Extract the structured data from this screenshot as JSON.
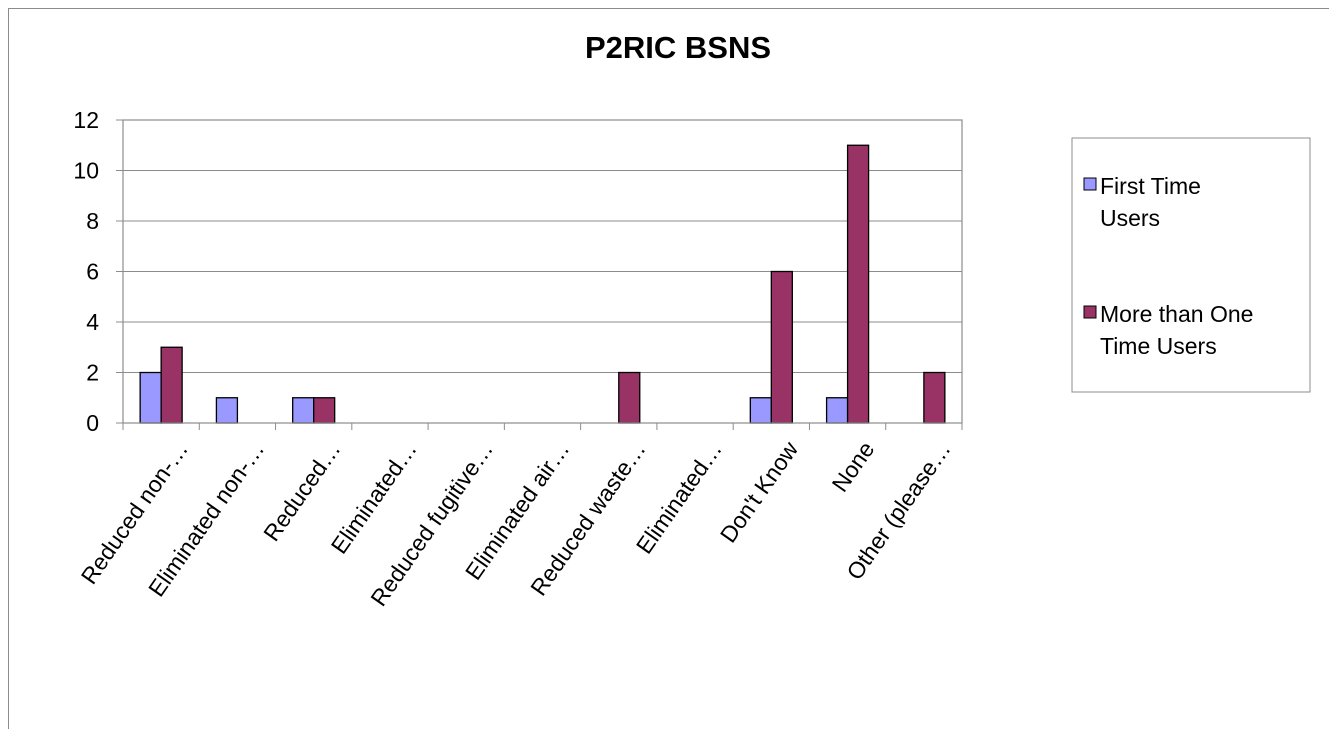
{
  "chart_data": {
    "type": "bar",
    "title": "P2RIC BSNS",
    "xlabel": "",
    "ylabel": "",
    "ylim": [
      0,
      12
    ],
    "yticks": [
      0,
      2,
      4,
      6,
      8,
      10,
      12
    ],
    "grid": true,
    "legend_position": "right",
    "categories": [
      "Reduced non-…",
      "Eliminated non-…",
      "Reduced…",
      "Eliminated…",
      "Reduced fugitive…",
      "Eliminated air…",
      "Reduced waste…",
      "Eliminated…",
      "Don't Know",
      "None",
      "Other (please…"
    ],
    "series": [
      {
        "name": "First Time Users",
        "color": "#9999ff",
        "values": [
          2,
          1,
          1,
          0,
          0,
          0,
          0,
          0,
          1,
          1,
          0
        ]
      },
      {
        "name": "More than One Time Users",
        "color": "#993366",
        "values": [
          3,
          0,
          1,
          0,
          0,
          0,
          2,
          0,
          6,
          11,
          2
        ]
      }
    ]
  },
  "legend": {
    "items": [
      {
        "line1": "First Time",
        "line2": "Users"
      },
      {
        "line1": "More than One",
        "line2": "Time Users"
      }
    ]
  }
}
